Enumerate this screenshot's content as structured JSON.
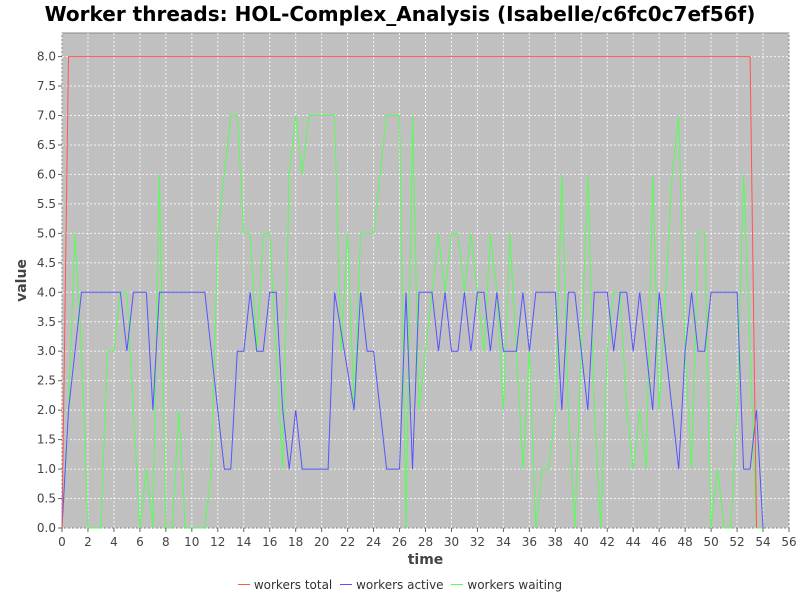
{
  "chart_data": {
    "type": "line",
    "title": "Worker threads: HOL-Complex_Analysis (Isabelle/c6fc0c7ef56f)",
    "xlabel": "time",
    "ylabel": "value",
    "xlim": [
      0,
      56
    ],
    "ylim": [
      0,
      8.4
    ],
    "xticks": [
      0,
      2,
      4,
      6,
      8,
      10,
      12,
      14,
      16,
      18,
      20,
      22,
      24,
      26,
      28,
      30,
      32,
      34,
      36,
      38,
      40,
      42,
      44,
      46,
      48,
      50,
      52,
      54,
      56
    ],
    "yticks": [
      0.0,
      0.5,
      1.0,
      1.5,
      2.0,
      2.5,
      3.0,
      3.5,
      4.0,
      4.5,
      5.0,
      5.5,
      6.0,
      6.5,
      7.0,
      7.5,
      8.0
    ],
    "grid": true,
    "legend_position": "bottom",
    "background": "#c0c0c0",
    "series": [
      {
        "name": "workers total",
        "color": "#ff5555",
        "points": [
          [
            0,
            0
          ],
          [
            0.5,
            8
          ],
          [
            53,
            8
          ],
          [
            53.5,
            0
          ]
        ]
      },
      {
        "name": "workers active",
        "color": "#5555ff",
        "points": [
          [
            0,
            0
          ],
          [
            0.5,
            2
          ],
          [
            1.5,
            4
          ],
          [
            4.5,
            4
          ],
          [
            5,
            3
          ],
          [
            5.5,
            4
          ],
          [
            6.5,
            4
          ],
          [
            7,
            2
          ],
          [
            7.5,
            4
          ],
          [
            11,
            4
          ],
          [
            12,
            2
          ],
          [
            12.5,
            1
          ],
          [
            13,
            1
          ],
          [
            13.5,
            3
          ],
          [
            14,
            3
          ],
          [
            14.5,
            4
          ],
          [
            15,
            3
          ],
          [
            15.5,
            3
          ],
          [
            16,
            4
          ],
          [
            16.5,
            4
          ],
          [
            17,
            2
          ],
          [
            17.5,
            1
          ],
          [
            18,
            2
          ],
          [
            18.5,
            1
          ],
          [
            20.5,
            1
          ],
          [
            21,
            4
          ],
          [
            22.5,
            2
          ],
          [
            23,
            4
          ],
          [
            23.5,
            3
          ],
          [
            24,
            3
          ],
          [
            24.5,
            2
          ],
          [
            25,
            1
          ],
          [
            26,
            1
          ],
          [
            26.5,
            4
          ],
          [
            27,
            1
          ],
          [
            27.5,
            4
          ],
          [
            28.5,
            4
          ],
          [
            29,
            3
          ],
          [
            29.5,
            4
          ],
          [
            30,
            3
          ],
          [
            30.5,
            3
          ],
          [
            31,
            4
          ],
          [
            31.5,
            3
          ],
          [
            32,
            4
          ],
          [
            32.5,
            4
          ],
          [
            33,
            3
          ],
          [
            33.5,
            4
          ],
          [
            34,
            3
          ],
          [
            35,
            3
          ],
          [
            35.5,
            4
          ],
          [
            36,
            3
          ],
          [
            36.5,
            4
          ],
          [
            38,
            4
          ],
          [
            38.5,
            2
          ],
          [
            39,
            4
          ],
          [
            39.5,
            4
          ],
          [
            40.5,
            2
          ],
          [
            41,
            4
          ],
          [
            42,
            4
          ],
          [
            42.5,
            3
          ],
          [
            43,
            4
          ],
          [
            43.5,
            4
          ],
          [
            44,
            3
          ],
          [
            44.5,
            4
          ],
          [
            45.5,
            2
          ],
          [
            46,
            4
          ],
          [
            47.5,
            1
          ],
          [
            48,
            3
          ],
          [
            48.5,
            4
          ],
          [
            49,
            3
          ],
          [
            49.5,
            3
          ],
          [
            50,
            4
          ],
          [
            52,
            4
          ],
          [
            52.5,
            1
          ],
          [
            53,
            1
          ],
          [
            53.5,
            2
          ],
          [
            54,
            0
          ]
        ]
      },
      {
        "name": "workers waiting",
        "color": "#55ff55",
        "points": [
          [
            0,
            0
          ],
          [
            0.5,
            2
          ],
          [
            1,
            5
          ],
          [
            1.5,
            3
          ],
          [
            2,
            0
          ],
          [
            2.5,
            0
          ],
          [
            3,
            0
          ],
          [
            3.5,
            3
          ],
          [
            4,
            3
          ],
          [
            4.5,
            4
          ],
          [
            5,
            4
          ],
          [
            5.5,
            2
          ],
          [
            6,
            0
          ],
          [
            6.5,
            1
          ],
          [
            7,
            0
          ],
          [
            7.5,
            6
          ],
          [
            8,
            0
          ],
          [
            8.5,
            0
          ],
          [
            9,
            2
          ],
          [
            9.5,
            0
          ],
          [
            11,
            0
          ],
          [
            11.5,
            1
          ],
          [
            12,
            5
          ],
          [
            12.5,
            6
          ],
          [
            13,
            7
          ],
          [
            13.5,
            7
          ],
          [
            14,
            5
          ],
          [
            14.5,
            5
          ],
          [
            15,
            3
          ],
          [
            15.5,
            5
          ],
          [
            16,
            5
          ],
          [
            16.5,
            3
          ],
          [
            17,
            1
          ],
          [
            17.5,
            6
          ],
          [
            18,
            7
          ],
          [
            18.5,
            6
          ],
          [
            19,
            7
          ],
          [
            21,
            7
          ],
          [
            21.5,
            3
          ],
          [
            22,
            5
          ],
          [
            22.5,
            2
          ],
          [
            23,
            5
          ],
          [
            23.5,
            5
          ],
          [
            24,
            5
          ],
          [
            24.5,
            6
          ],
          [
            25,
            7
          ],
          [
            26,
            7
          ],
          [
            26.5,
            0
          ],
          [
            27,
            7
          ],
          [
            27.5,
            2
          ],
          [
            28,
            3
          ],
          [
            28.5,
            4
          ],
          [
            29,
            5
          ],
          [
            29.5,
            4
          ],
          [
            30,
            5
          ],
          [
            30.5,
            5
          ],
          [
            31,
            4
          ],
          [
            31.5,
            5
          ],
          [
            32,
            4
          ],
          [
            32.5,
            3
          ],
          [
            33,
            5
          ],
          [
            33.5,
            4
          ],
          [
            34,
            2
          ],
          [
            34.5,
            5
          ],
          [
            35,
            3
          ],
          [
            35.5,
            1
          ],
          [
            36,
            3
          ],
          [
            36.5,
            0
          ],
          [
            37,
            1
          ],
          [
            37.5,
            1
          ],
          [
            38,
            2
          ],
          [
            38.5,
            6
          ],
          [
            39,
            2
          ],
          [
            39.5,
            0
          ],
          [
            40,
            3
          ],
          [
            40.5,
            6
          ],
          [
            41,
            2
          ],
          [
            41.5,
            0
          ],
          [
            42,
            3
          ],
          [
            42.5,
            4
          ],
          [
            43,
            4
          ],
          [
            43.5,
            2
          ],
          [
            44,
            1
          ],
          [
            44.5,
            2
          ],
          [
            45,
            1
          ],
          [
            45.5,
            6
          ],
          [
            46,
            2
          ],
          [
            46.5,
            4
          ],
          [
            47,
            6
          ],
          [
            47.5,
            7
          ],
          [
            48,
            3
          ],
          [
            48.5,
            1
          ],
          [
            49,
            5
          ],
          [
            49.5,
            5
          ],
          [
            50,
            0
          ],
          [
            50.5,
            1
          ],
          [
            51,
            0
          ],
          [
            51.5,
            0
          ],
          [
            52,
            2
          ],
          [
            52.5,
            6
          ],
          [
            53,
            3
          ],
          [
            53.5,
            0
          ],
          [
            54,
            0
          ]
        ]
      }
    ]
  }
}
